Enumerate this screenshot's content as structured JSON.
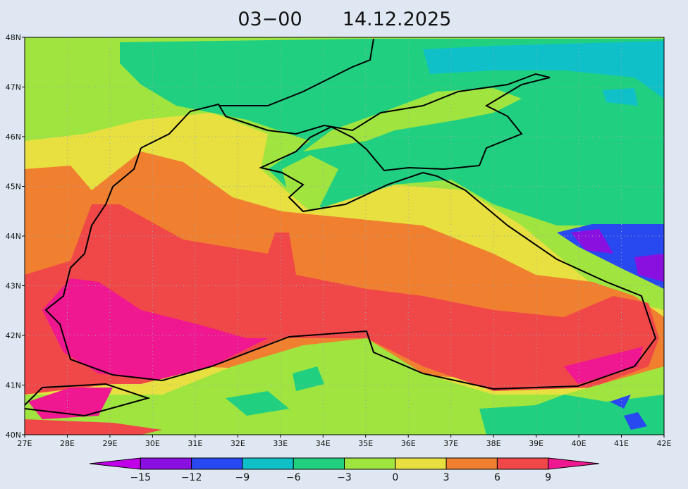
{
  "title": {
    "time": "03−00",
    "date": "14.12.2025"
  },
  "map": {
    "lat_labels": [
      "40N",
      "41N",
      "42N",
      "43N",
      "44N",
      "45N",
      "46N",
      "47N",
      "48N"
    ],
    "lon_labels": [
      "27E",
      "28E",
      "29E",
      "30E",
      "31E",
      "32E",
      "33E",
      "34E",
      "35E",
      "36E",
      "37E",
      "38E",
      "39E",
      "40E",
      "41E",
      "42E"
    ]
  },
  "colorbar": {
    "colors": [
      "#c000e8",
      "#8a10e0",
      "#2848f0",
      "#10c0c8",
      "#20d080",
      "#a0e440",
      "#e8e040",
      "#f08030",
      "#f04848",
      "#f01890"
    ],
    "labels": [
      "−15",
      "−12",
      "−9",
      "−6",
      "−3",
      "0",
      "3",
      "6",
      "9"
    ]
  }
}
